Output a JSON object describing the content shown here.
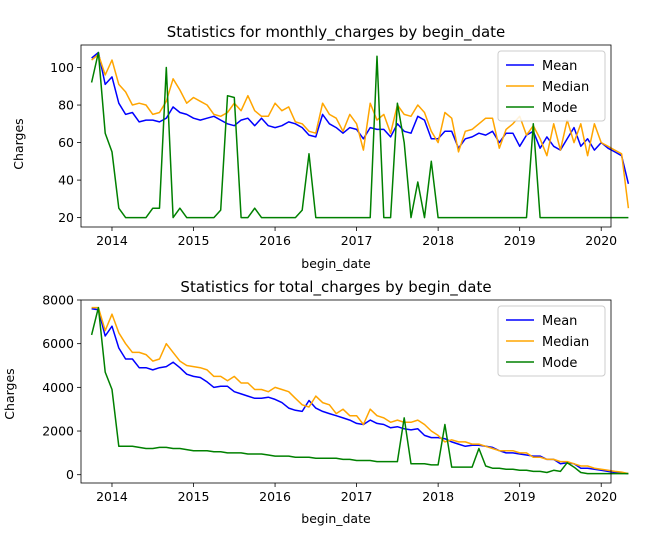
{
  "chart_data": [
    {
      "type": "line",
      "title": "Statistics for monthly_charges by begin_date",
      "xlabel": "begin_date",
      "ylabel": "Charges",
      "xlim": [
        2013.62,
        2020.12
      ],
      "ylim": [
        15,
        112
      ],
      "xticks": [
        2014,
        2015,
        2016,
        2017,
        2018,
        2019,
        2020
      ],
      "yticks": [
        20,
        40,
        60,
        80,
        100
      ],
      "legend_position": "top-right",
      "x_start_year": 2013.75,
      "x_step_months": 1,
      "series": [
        {
          "name": "Mean",
          "color": "#0000ff",
          "values": [
            105,
            108,
            91,
            95,
            81,
            75,
            76,
            71,
            72,
            72,
            71,
            73,
            79,
            76,
            75,
            73,
            72,
            73,
            74,
            72,
            70,
            69,
            72,
            73,
            69,
            73,
            69,
            68,
            69,
            71,
            70,
            68,
            64,
            63,
            75,
            70,
            68,
            65,
            68,
            67,
            62,
            68,
            67,
            67,
            63,
            70,
            66,
            65,
            74,
            72,
            62,
            62,
            66,
            66,
            57,
            62,
            63,
            65,
            64,
            66,
            60,
            65,
            65,
            58,
            64,
            66,
            57,
            63,
            58,
            56,
            62,
            68,
            58,
            62,
            56,
            60,
            57,
            55,
            53,
            38
          ]
        },
        {
          "name": "Median",
          "color": "#ffa500",
          "values": [
            104,
            107,
            96,
            104,
            91,
            87,
            80,
            81,
            80,
            75,
            76,
            82,
            94,
            88,
            81,
            84,
            82,
            80,
            75,
            74,
            76,
            81,
            77,
            85,
            77,
            74,
            74,
            81,
            77,
            79,
            71,
            70,
            66,
            65,
            81,
            75,
            73,
            66,
            75,
            70,
            56,
            81,
            72,
            75,
            65,
            80,
            75,
            74,
            80,
            76,
            66,
            60,
            76,
            73,
            55,
            66,
            67,
            70,
            73,
            73,
            57,
            67,
            70,
            74,
            64,
            69,
            62,
            53,
            70,
            56,
            72,
            60,
            70,
            53,
            70,
            60,
            58,
            56,
            54,
            25
          ]
        },
        {
          "name": "Mode",
          "color": "#008000",
          "values": [
            92,
            108,
            65,
            55,
            25,
            20,
            20,
            20,
            20,
            25,
            25,
            100,
            20,
            25,
            20,
            20,
            20,
            20,
            20,
            24,
            85,
            84,
            20,
            20,
            25,
            20,
            20,
            20,
            20,
            20,
            20,
            24,
            54,
            20,
            20,
            20,
            20,
            20,
            20,
            20,
            20,
            20,
            106,
            20,
            20,
            81,
            60,
            20,
            39,
            20,
            50,
            20,
            20,
            20,
            20,
            20,
            20,
            20,
            20,
            20,
            20,
            20,
            20,
            20,
            20,
            70,
            20,
            20,
            20,
            20,
            20,
            20,
            20,
            20,
            20,
            20,
            20,
            20,
            20,
            20
          ]
        }
      ]
    },
    {
      "type": "line",
      "title": "Statistics for total_charges by begin_date",
      "xlabel": "begin_date",
      "ylabel": "Charges",
      "xlim": [
        2013.62,
        2020.12
      ],
      "ylim": [
        -380,
        8000
      ],
      "xticks": [
        2014,
        2015,
        2016,
        2017,
        2018,
        2019,
        2020
      ],
      "yticks": [
        0,
        2000,
        4000,
        6000,
        8000
      ],
      "legend_position": "top-right",
      "x_start_year": 2013.75,
      "x_step_months": 1,
      "series": [
        {
          "name": "Mean",
          "color": "#0000ff",
          "values": [
            7600,
            7550,
            6350,
            6800,
            5800,
            5300,
            5300,
            4900,
            4900,
            4800,
            4900,
            4950,
            5150,
            4900,
            4600,
            4500,
            4450,
            4250,
            4000,
            4050,
            4050,
            3800,
            3700,
            3600,
            3500,
            3500,
            3550,
            3450,
            3300,
            3050,
            2950,
            2900,
            3400,
            3050,
            2900,
            2800,
            2700,
            2600,
            2500,
            2350,
            2300,
            2500,
            2350,
            2300,
            2150,
            2200,
            2100,
            2050,
            2100,
            1800,
            1700,
            1700,
            1650,
            1500,
            1400,
            1300,
            1350,
            1350,
            1300,
            1250,
            1100,
            1000,
            1000,
            950,
            900,
            850,
            850,
            700,
            700,
            500,
            550,
            500,
            300,
            300,
            250,
            200,
            150,
            100,
            80,
            50
          ]
        },
        {
          "name": "Median",
          "color": "#ffa500",
          "values": [
            7650,
            7650,
            6600,
            7350,
            6500,
            6000,
            5600,
            5600,
            5500,
            5200,
            5300,
            6000,
            5600,
            5200,
            5000,
            4950,
            4900,
            4800,
            4500,
            4500,
            4300,
            4500,
            4200,
            4200,
            3900,
            3900,
            3800,
            4000,
            3900,
            3800,
            3500,
            3200,
            3100,
            3600,
            3300,
            3200,
            2800,
            3000,
            2700,
            2700,
            2300,
            3000,
            2700,
            2600,
            2400,
            2500,
            2400,
            2400,
            2500,
            2300,
            2000,
            1800,
            1500,
            1600,
            1500,
            1500,
            1400,
            1400,
            1300,
            1200,
            1100,
            1100,
            1100,
            1000,
            1000,
            800,
            800,
            700,
            700,
            600,
            600,
            500,
            400,
            400,
            300,
            250,
            200,
            150,
            120,
            50
          ]
        },
        {
          "name": "Mode",
          "color": "#008000",
          "values": [
            6400,
            7650,
            4700,
            3900,
            1300,
            1300,
            1300,
            1250,
            1200,
            1200,
            1250,
            1250,
            1200,
            1200,
            1150,
            1100,
            1100,
            1100,
            1050,
            1050,
            1000,
            1000,
            1000,
            950,
            950,
            950,
            900,
            850,
            850,
            850,
            800,
            800,
            800,
            750,
            750,
            750,
            750,
            700,
            700,
            650,
            650,
            650,
            600,
            600,
            600,
            600,
            2600,
            500,
            500,
            500,
            450,
            450,
            2300,
            350,
            350,
            350,
            350,
            1200,
            400,
            300,
            300,
            250,
            250,
            200,
            200,
            150,
            150,
            100,
            200,
            150,
            550,
            350,
            100,
            50,
            50,
            50,
            50,
            50,
            50,
            50
          ]
        }
      ]
    }
  ]
}
